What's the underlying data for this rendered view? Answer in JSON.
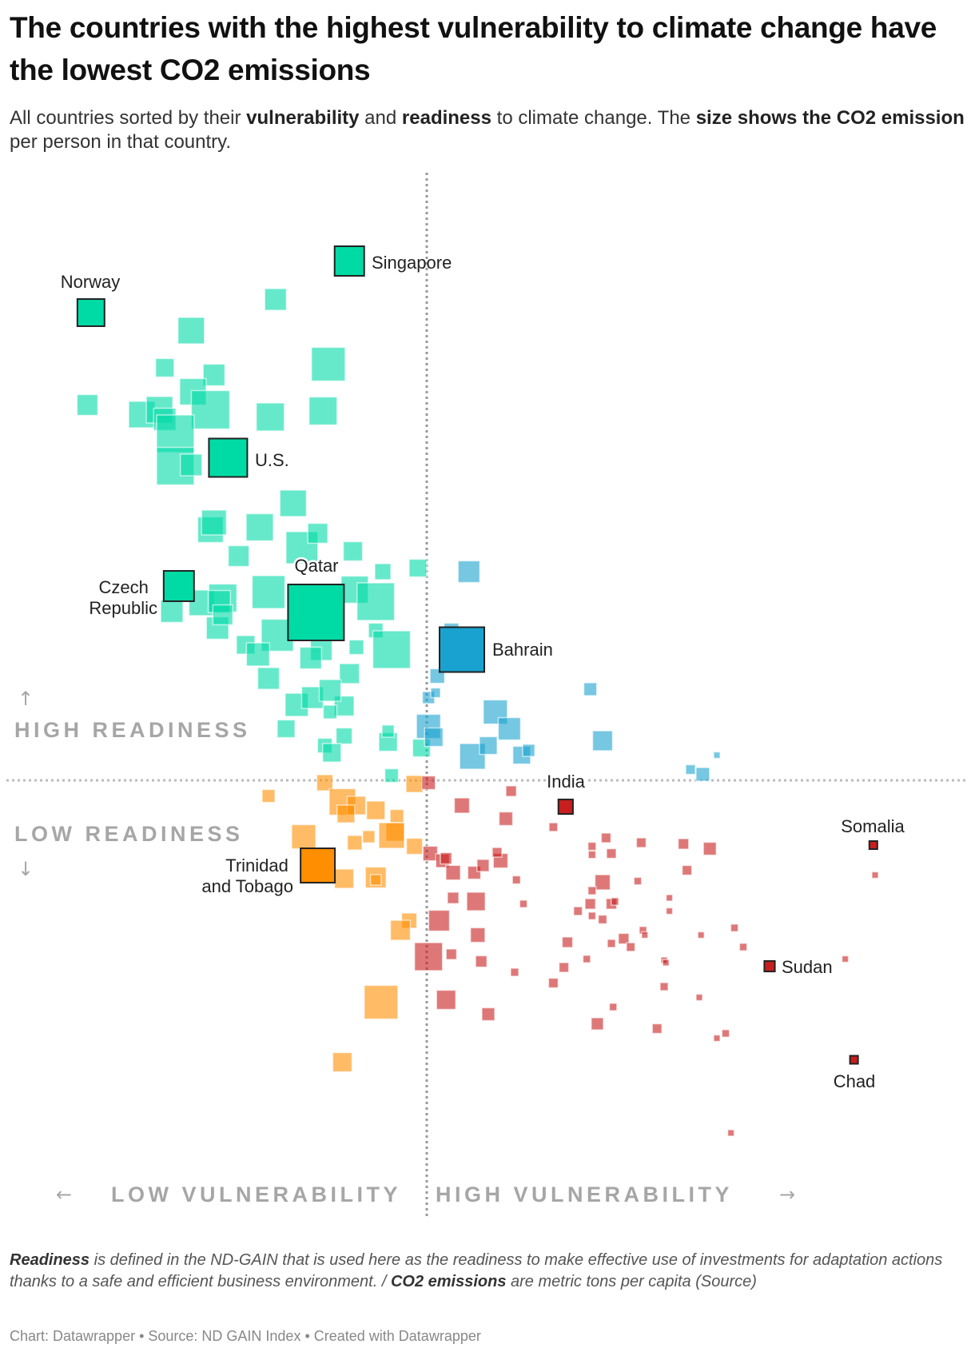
{
  "header": {
    "title": "The countries with the highest vulnerability to climate change have the lowest CO2 emissions",
    "subtitle": {
      "parts": [
        "All countries sorted by their ",
        "vulnerability",
        " and ",
        "readiness",
        " to climate change. The ",
        "size shows the CO2 emission",
        " per person in that country."
      ]
    }
  },
  "footer": {
    "note_parts": [
      "Readiness",
      " is defined in the ND-GAIN that is used here as the readiness to make effective use of investments for adaptation actions thanks to a safe and efficient business environment. / ",
      "CO2 emissions",
      " are metric tons per capita ",
      "(Source)"
    ],
    "credit": "Chart: Datawrapper • Source: ND GAIN Index • Created with Datawrapper"
  },
  "icons": {
    "arrow_up": "↑",
    "arrow_down": "↓",
    "arrow_left": "←",
    "arrow_right": "→"
  },
  "chart_data": {
    "type": "scatter",
    "title": "The countries with the highest vulnerability to climate change have the lowest CO2 emissions",
    "xlabel": "Vulnerability",
    "ylabel": "Readiness",
    "size_label": "CO2 emissions (metric tons per capita)",
    "axis_labels": {
      "high_readiness": "HIGH READINESS",
      "low_readiness": "LOW READINESS",
      "low_vulnerability": "LOW VULNERABILITY",
      "high_vulnerability": "HIGH VULNERABILITY"
    },
    "vulnerability_split": 0.45,
    "readiness_split": 0.4,
    "colors": {
      "high_readiness_low_vulnerability": "#00dba6",
      "high_readiness_high_vulnerability": "#19a2cf",
      "low_readiness_low_vulnerability": "#ff8e00",
      "low_readiness_high_vulnerability": "#c81e1e"
    },
    "point_fields": [
      "vulnerability",
      "readiness",
      "co2"
    ],
    "highlighted": [
      {
        "label": "Norway",
        "vulnerability": 0.259,
        "readiness": 0.79,
        "co2": 8.0
      },
      {
        "label": "Singapore",
        "vulnerability": 0.406,
        "readiness": 0.833,
        "co2": 9.5
      },
      {
        "label": "U.S.",
        "vulnerability": 0.337,
        "readiness": 0.669,
        "co2": 16.0
      },
      {
        "label": [
          "Czech",
          "Republic"
        ],
        "vulnerability": 0.309,
        "readiness": 0.562,
        "co2": 10.0
      },
      {
        "label": "Qatar",
        "vulnerability": 0.387,
        "readiness": 0.54,
        "co2": 34.0
      },
      {
        "label": "Bahrain",
        "vulnerability": 0.47,
        "readiness": 0.509,
        "co2": 21.8
      },
      {
        "label": "India",
        "vulnerability": 0.529,
        "readiness": 0.378,
        "co2": 2.3
      },
      {
        "label": "Somalia",
        "vulnerability": 0.704,
        "readiness": 0.346,
        "co2": 0.7
      },
      {
        "label": "Sudan",
        "vulnerability": 0.645,
        "readiness": 0.245,
        "co2": 1.2
      },
      {
        "label": "Chad",
        "vulnerability": 0.693,
        "readiness": 0.167,
        "co2": 0.7
      },
      {
        "label": [
          "Trinidad",
          "and Tobago"
        ],
        "vulnerability": 0.388,
        "readiness": 0.329,
        "co2": 12.8
      }
    ],
    "points": [
      [
        0.364,
        0.801,
        5.1
      ],
      [
        0.316,
        0.775,
        7.6
      ],
      [
        0.394,
        0.747,
        12.3
      ],
      [
        0.301,
        0.744,
        3.7
      ],
      [
        0.329,
        0.738,
        5.1
      ],
      [
        0.257,
        0.713,
        4.7
      ],
      [
        0.317,
        0.724,
        7.6
      ],
      [
        0.327,
        0.709,
        16.0
      ],
      [
        0.361,
        0.703,
        8.5
      ],
      [
        0.391,
        0.708,
        8.5
      ],
      [
        0.288,
        0.705,
        7.6
      ],
      [
        0.298,
        0.709,
        7.6
      ],
      [
        0.301,
        0.701,
        5.4
      ],
      [
        0.307,
        0.689,
        15.3
      ],
      [
        0.307,
        0.662,
        15.3
      ],
      [
        0.316,
        0.663,
        5.1
      ],
      [
        0.374,
        0.631,
        7.6
      ],
      [
        0.327,
        0.609,
        7.1
      ],
      [
        0.329,
        0.615,
        6.7
      ],
      [
        0.355,
        0.611,
        8.0
      ],
      [
        0.343,
        0.587,
        4.7
      ],
      [
        0.379,
        0.594,
        11.1
      ],
      [
        0.388,
        0.606,
        4.3
      ],
      [
        0.408,
        0.591,
        4.0
      ],
      [
        0.425,
        0.574,
        2.8
      ],
      [
        0.445,
        0.577,
        3.4
      ],
      [
        0.36,
        0.557,
        11.7
      ],
      [
        0.409,
        0.559,
        8.0
      ],
      [
        0.421,
        0.549,
        15.3
      ],
      [
        0.305,
        0.541,
        5.4
      ],
      [
        0.322,
        0.548,
        7.1
      ],
      [
        0.334,
        0.552,
        8.5
      ],
      [
        0.332,
        0.549,
        5.4
      ],
      [
        0.331,
        0.527,
        5.4
      ],
      [
        0.334,
        0.538,
        4.3
      ],
      [
        0.365,
        0.521,
        11.1
      ],
      [
        0.421,
        0.525,
        2.3
      ],
      [
        0.43,
        0.509,
        15.3
      ],
      [
        0.41,
        0.511,
        2.3
      ],
      [
        0.347,
        0.513,
        3.7
      ],
      [
        0.354,
        0.505,
        5.8
      ],
      [
        0.39,
        0.509,
        5.1
      ],
      [
        0.384,
        0.502,
        5.1
      ],
      [
        0.36,
        0.485,
        5.1
      ],
      [
        0.406,
        0.489,
        4.3
      ],
      [
        0.376,
        0.463,
        5.8
      ],
      [
        0.385,
        0.469,
        5.1
      ],
      [
        0.403,
        0.462,
        4.3
      ],
      [
        0.395,
        0.475,
        5.1
      ],
      [
        0.395,
        0.457,
        2.0
      ],
      [
        0.37,
        0.443,
        3.4
      ],
      [
        0.403,
        0.437,
        2.8
      ],
      [
        0.392,
        0.429,
        2.3
      ],
      [
        0.396,
        0.423,
        3.7
      ],
      [
        0.428,
        0.432,
        3.7
      ],
      [
        0.428,
        0.441,
        1.6
      ],
      [
        0.447,
        0.427,
        3.4
      ],
      [
        0.43,
        0.404,
        2.0
      ],
      [
        0.451,
        0.469,
        1.6
      ],
      [
        0.451,
        0.445,
        6.3
      ],
      [
        0.454,
        0.436,
        3.7
      ],
      [
        0.489,
        0.457,
        6.3
      ],
      [
        0.497,
        0.443,
        5.4
      ],
      [
        0.476,
        0.42,
        7.1
      ],
      [
        0.485,
        0.429,
        3.4
      ],
      [
        0.504,
        0.421,
        3.4
      ],
      [
        0.508,
        0.425,
        1.6
      ],
      [
        0.474,
        0.574,
        5.1
      ],
      [
        0.456,
        0.487,
        2.3
      ],
      [
        0.455,
        0.473,
        1.0
      ],
      [
        0.543,
        0.476,
        1.8
      ],
      [
        0.464,
        0.525,
        2.3
      ],
      [
        0.55,
        0.433,
        4.3
      ],
      [
        0.615,
        0.421,
        0.4
      ],
      [
        0.6,
        0.409,
        1.0
      ],
      [
        0.607,
        0.405,
        2.0
      ],
      [
        0.392,
        0.398,
        2.8
      ],
      [
        0.36,
        0.387,
        1.8
      ],
      [
        0.402,
        0.382,
        7.6
      ],
      [
        0.41,
        0.379,
        3.7
      ],
      [
        0.404,
        0.372,
        3.4
      ],
      [
        0.421,
        0.375,
        3.7
      ],
      [
        0.433,
        0.37,
        2.0
      ],
      [
        0.432,
        0.357,
        3.7
      ],
      [
        0.43,
        0.354,
        7.1
      ],
      [
        0.443,
        0.397,
        3.1
      ],
      [
        0.38,
        0.353,
        6.3
      ],
      [
        0.409,
        0.348,
        2.3
      ],
      [
        0.417,
        0.353,
        1.6
      ],
      [
        0.443,
        0.345,
        2.8
      ],
      [
        0.403,
        0.318,
        4.0
      ],
      [
        0.421,
        0.319,
        4.7
      ],
      [
        0.421,
        0.317,
        1.2
      ],
      [
        0.44,
        0.283,
        2.5
      ],
      [
        0.435,
        0.275,
        4.3
      ],
      [
        0.424,
        0.215,
        12.3
      ],
      [
        0.402,
        0.165,
        4.0
      ],
      [
        0.451,
        0.398,
        2.0
      ],
      [
        0.498,
        0.391,
        1.2
      ],
      [
        0.47,
        0.379,
        2.5
      ],
      [
        0.495,
        0.368,
        2.0
      ],
      [
        0.522,
        0.361,
        0.8
      ],
      [
        0.452,
        0.339,
        2.3
      ],
      [
        0.459,
        0.333,
        2.0
      ],
      [
        0.461,
        0.335,
        1.4
      ],
      [
        0.465,
        0.323,
        2.3
      ],
      [
        0.477,
        0.323,
        1.8
      ],
      [
        0.482,
        0.329,
        1.6
      ],
      [
        0.492,
        0.333,
        2.3
      ],
      [
        0.49,
        0.34,
        1.0
      ],
      [
        0.501,
        0.317,
        0.7
      ],
      [
        0.465,
        0.302,
        1.4
      ],
      [
        0.478,
        0.299,
        3.7
      ],
      [
        0.505,
        0.297,
        0.6
      ],
      [
        0.457,
        0.283,
        4.7
      ],
      [
        0.451,
        0.253,
        8.5
      ],
      [
        0.479,
        0.271,
        2.3
      ],
      [
        0.464,
        0.255,
        1.2
      ],
      [
        0.481,
        0.249,
        1.4
      ],
      [
        0.5,
        0.24,
        0.7
      ],
      [
        0.461,
        0.217,
        4.0
      ],
      [
        0.485,
        0.205,
        1.8
      ],
      [
        0.53,
        0.265,
        1.2
      ],
      [
        0.528,
        0.244,
        1.0
      ],
      [
        0.522,
        0.231,
        1.0
      ],
      [
        0.541,
        0.251,
        0.6
      ],
      [
        0.556,
        0.211,
        0.6
      ],
      [
        0.547,
        0.197,
        1.6
      ],
      [
        0.581,
        0.193,
        1.0
      ],
      [
        0.585,
        0.228,
        0.7
      ],
      [
        0.585,
        0.25,
        0.4
      ],
      [
        0.536,
        0.291,
        0.8
      ],
      [
        0.543,
        0.297,
        1.2
      ],
      [
        0.544,
        0.287,
        0.6
      ],
      [
        0.55,
        0.284,
        0.8
      ],
      [
        0.555,
        0.297,
        1.2
      ],
      [
        0.557,
        0.299,
        0.6
      ],
      [
        0.562,
        0.268,
        1.2
      ],
      [
        0.566,
        0.261,
        0.8
      ],
      [
        0.555,
        0.264,
        0.7
      ],
      [
        0.573,
        0.275,
        0.6
      ],
      [
        0.574,
        0.271,
        0.4
      ],
      [
        0.552,
        0.352,
        1.0
      ],
      [
        0.544,
        0.345,
        0.7
      ],
      [
        0.544,
        0.338,
        0.6
      ],
      [
        0.555,
        0.339,
        1.0
      ],
      [
        0.572,
        0.348,
        1.0
      ],
      [
        0.596,
        0.347,
        1.2
      ],
      [
        0.611,
        0.343,
        1.8
      ],
      [
        0.598,
        0.325,
        1.0
      ],
      [
        0.55,
        0.315,
        2.5
      ],
      [
        0.57,
        0.316,
        0.6
      ],
      [
        0.705,
        0.321,
        0.4
      ],
      [
        0.544,
        0.308,
        0.7
      ],
      [
        0.588,
        0.302,
        0.4
      ],
      [
        0.588,
        0.291,
        0.4
      ],
      [
        0.606,
        0.271,
        0.4
      ],
      [
        0.625,
        0.277,
        0.6
      ],
      [
        0.63,
        0.261,
        0.6
      ],
      [
        0.688,
        0.251,
        0.4
      ],
      [
        0.586,
        0.248,
        0.4
      ],
      [
        0.605,
        0.219,
        0.4
      ],
      [
        0.615,
        0.185,
        0.4
      ],
      [
        0.62,
        0.189,
        0.6
      ],
      [
        0.623,
        0.106,
        0.4
      ]
    ]
  }
}
